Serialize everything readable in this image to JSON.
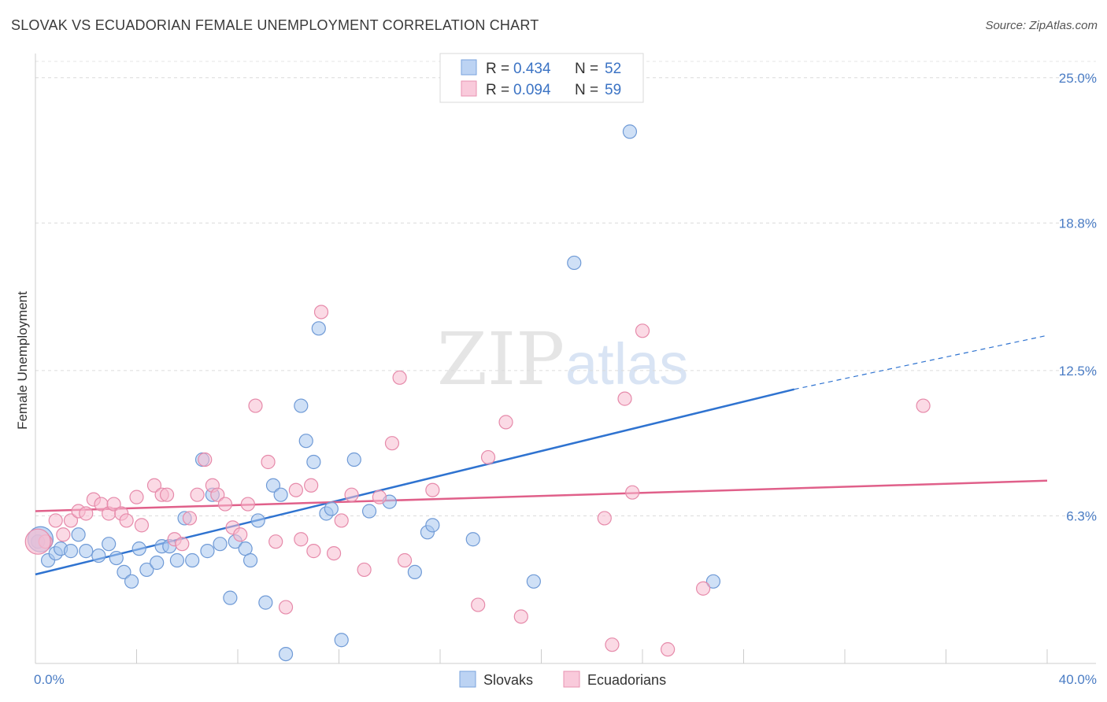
{
  "header": {
    "title": "SLOVAK VS ECUADORIAN FEMALE UNEMPLOYMENT CORRELATION CHART",
    "source": "Source: ZipAtlas.com"
  },
  "watermark": {
    "zip": "ZIP",
    "atlas": "atlas"
  },
  "chart_data": {
    "type": "scatter",
    "ylabel": "Female Unemployment",
    "xlim": [
      0,
      40
    ],
    "ylim": [
      0,
      25.9
    ],
    "y_ticks": [
      6.3,
      12.5,
      18.8,
      25.0
    ],
    "y_tick_labels": [
      "6.3%",
      "12.5%",
      "18.8%",
      "25.0%"
    ],
    "x_tick_labels": [
      "0.0%",
      "40.0%"
    ],
    "grid": "horizontal dashed",
    "legend": {
      "placement": "top-center",
      "rows": [
        {
          "r_label": "R =",
          "r_value": "0.434",
          "n_label": "N =",
          "n_value": "52"
        },
        {
          "r_label": "R =",
          "r_value": "0.094",
          "n_label": "N =",
          "n_value": "59"
        }
      ]
    },
    "series": [
      {
        "name": "Slovaks",
        "color": "#a8c6ef",
        "stroke": "#6f9ad6",
        "trend_color": "#2f73d0",
        "trend": {
          "x0": 0,
          "y0": 3.8,
          "x1": 30,
          "y1": 11.7,
          "dash_to_x": 40,
          "dash_to_y": 14.0
        },
        "points": [
          [
            0.1,
            5.2
          ],
          [
            0.5,
            4.4
          ],
          [
            0.8,
            4.7
          ],
          [
            1.0,
            4.9
          ],
          [
            1.4,
            4.8
          ],
          [
            1.7,
            5.5
          ],
          [
            2.0,
            4.8
          ],
          [
            2.5,
            4.6
          ],
          [
            2.9,
            5.1
          ],
          [
            3.2,
            4.5
          ],
          [
            3.5,
            3.9
          ],
          [
            3.8,
            3.5
          ],
          [
            4.1,
            4.9
          ],
          [
            4.4,
            4.0
          ],
          [
            4.8,
            4.3
          ],
          [
            5.0,
            5.0
          ],
          [
            5.3,
            5.0
          ],
          [
            5.6,
            4.4
          ],
          [
            5.9,
            6.2
          ],
          [
            6.2,
            4.4
          ],
          [
            6.6,
            8.7
          ],
          [
            6.8,
            4.8
          ],
          [
            7.0,
            7.2
          ],
          [
            7.3,
            5.1
          ],
          [
            7.7,
            2.8
          ],
          [
            7.9,
            5.2
          ],
          [
            8.3,
            4.9
          ],
          [
            8.5,
            4.4
          ],
          [
            8.8,
            6.1
          ],
          [
            9.1,
            2.6
          ],
          [
            9.4,
            7.6
          ],
          [
            9.7,
            7.2
          ],
          [
            9.9,
            0.4
          ],
          [
            10.5,
            11.0
          ],
          [
            10.7,
            9.5
          ],
          [
            11.0,
            8.6
          ],
          [
            11.2,
            14.3
          ],
          [
            11.5,
            6.4
          ],
          [
            11.7,
            6.6
          ],
          [
            12.1,
            1.0
          ],
          [
            12.6,
            8.7
          ],
          [
            13.2,
            6.5
          ],
          [
            14.0,
            6.9
          ],
          [
            15.0,
            3.9
          ],
          [
            15.5,
            5.6
          ],
          [
            15.7,
            5.9
          ],
          [
            17.3,
            5.3
          ],
          [
            19.7,
            3.5
          ],
          [
            21.3,
            17.1
          ],
          [
            23.5,
            22.7
          ],
          [
            26.8,
            3.5
          ],
          [
            0.2,
            5.3
          ]
        ]
      },
      {
        "name": "Ecuadorians",
        "color": "#f7bcd0",
        "stroke": "#e68aaa",
        "trend_color": "#e0608a",
        "trend": {
          "x0": 0,
          "y0": 6.5,
          "x1": 40,
          "y1": 7.8
        },
        "points": [
          [
            0.4,
            5.2
          ],
          [
            0.8,
            6.1
          ],
          [
            1.1,
            5.5
          ],
          [
            1.4,
            6.1
          ],
          [
            1.7,
            6.5
          ],
          [
            2.0,
            6.4
          ],
          [
            2.3,
            7.0
          ],
          [
            2.6,
            6.8
          ],
          [
            2.9,
            6.4
          ],
          [
            3.1,
            6.8
          ],
          [
            3.4,
            6.4
          ],
          [
            3.6,
            6.1
          ],
          [
            4.0,
            7.1
          ],
          [
            4.2,
            5.9
          ],
          [
            4.7,
            7.6
          ],
          [
            5.0,
            7.2
          ],
          [
            5.2,
            7.2
          ],
          [
            5.5,
            5.3
          ],
          [
            5.8,
            5.1
          ],
          [
            6.1,
            6.2
          ],
          [
            6.4,
            7.2
          ],
          [
            6.7,
            8.7
          ],
          [
            7.0,
            7.6
          ],
          [
            7.2,
            7.2
          ],
          [
            7.5,
            6.8
          ],
          [
            7.8,
            5.8
          ],
          [
            8.1,
            5.5
          ],
          [
            8.4,
            6.8
          ],
          [
            8.7,
            11.0
          ],
          [
            9.2,
            8.6
          ],
          [
            9.5,
            5.2
          ],
          [
            9.9,
            2.4
          ],
          [
            10.3,
            7.4
          ],
          [
            10.5,
            5.3
          ],
          [
            10.9,
            7.6
          ],
          [
            11.0,
            4.8
          ],
          [
            11.3,
            15.0
          ],
          [
            11.8,
            4.7
          ],
          [
            12.1,
            6.1
          ],
          [
            12.5,
            7.2
          ],
          [
            13.0,
            4.0
          ],
          [
            13.6,
            7.1
          ],
          [
            14.1,
            9.4
          ],
          [
            14.4,
            12.2
          ],
          [
            14.6,
            4.4
          ],
          [
            15.7,
            7.4
          ],
          [
            17.5,
            2.5
          ],
          [
            17.9,
            8.8
          ],
          [
            18.6,
            10.3
          ],
          [
            19.2,
            2.0
          ],
          [
            22.5,
            6.2
          ],
          [
            22.8,
            0.8
          ],
          [
            23.3,
            11.3
          ],
          [
            23.6,
            7.3
          ],
          [
            24.0,
            14.2
          ],
          [
            25.0,
            0.6
          ],
          [
            26.4,
            3.2
          ],
          [
            35.1,
            11.0
          ],
          [
            0.1,
            5.2
          ]
        ]
      }
    ]
  }
}
